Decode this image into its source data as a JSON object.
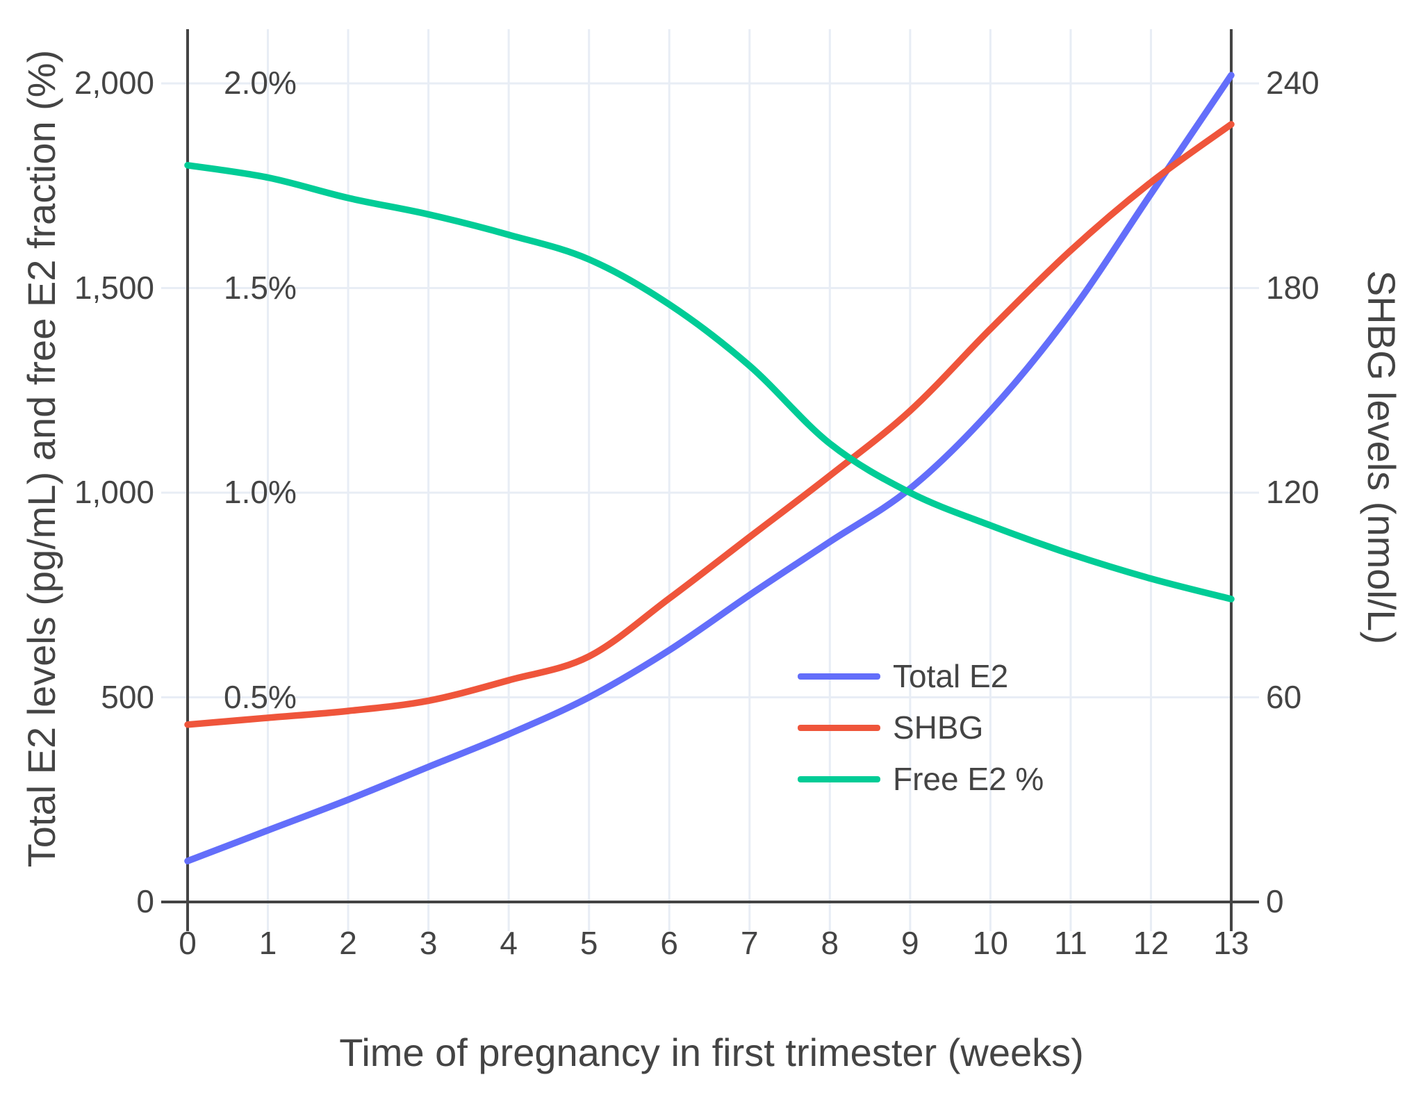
{
  "chart_data": {
    "type": "line",
    "title": "",
    "xlabel": "Time of pregnancy in first trimester (weeks)",
    "ylabel_left": "Total E2 levels (pg/mL) and free E2 fraction (%)",
    "ylabel_right": "SHBG levels (nmol/L)",
    "x": [
      0,
      1,
      2,
      3,
      4,
      5,
      6,
      7,
      8,
      9,
      10,
      11,
      12,
      13
    ],
    "series": [
      {
        "name": "Total E2",
        "color": "#636EFA",
        "axis": "left",
        "values": [
          100,
          175,
          250,
          330,
          410,
          500,
          615,
          750,
          880,
          1010,
          1200,
          1440,
          1730,
          2020
        ]
      },
      {
        "name": "SHBG",
        "color": "#EF553B",
        "axis": "right",
        "values": [
          52,
          54,
          56,
          59,
          65,
          72,
          89,
          107,
          125,
          144,
          168,
          191,
          211,
          228
        ]
      },
      {
        "name": "Free E2 %",
        "color": "#00CC96",
        "axis": "left_pct",
        "values": [
          1.8,
          1.77,
          1.72,
          1.68,
          1.63,
          1.57,
          1.46,
          1.31,
          1.12,
          1.0,
          0.92,
          0.85,
          0.79,
          0.74
        ]
      }
    ],
    "left_ticks": {
      "labels": [
        "0",
        "500",
        "1,000",
        "1,500",
        "2,000"
      ],
      "values": [
        0,
        500,
        1000,
        1500,
        2000
      ]
    },
    "pct_ticks": {
      "labels": [
        "0.5%",
        "1.0%",
        "1.5%",
        "2.0%"
      ],
      "values": [
        500,
        1000,
        1500,
        2000
      ]
    },
    "right_ticks": {
      "labels": [
        "0",
        "60",
        "120",
        "180",
        "240"
      ],
      "values": [
        0,
        60,
        120,
        180,
        240
      ]
    },
    "x_ticks": {
      "labels": [
        "0",
        "1",
        "2",
        "3",
        "4",
        "5",
        "6",
        "7",
        "8",
        "9",
        "10",
        "11",
        "12",
        "13"
      ],
      "values": [
        0,
        1,
        2,
        3,
        4,
        5,
        6,
        7,
        8,
        9,
        10,
        11,
        12,
        13
      ]
    },
    "ylim_left": [
      0,
      2133
    ],
    "ylim_right": [
      0,
      256
    ],
    "xlim": [
      0,
      13
    ],
    "grid": true,
    "legend_position": "inside-lower-right",
    "colors": {
      "grid": "#E8EDF5",
      "axis": "#444444",
      "text": "#444444",
      "background": "#FFFFFF"
    }
  }
}
